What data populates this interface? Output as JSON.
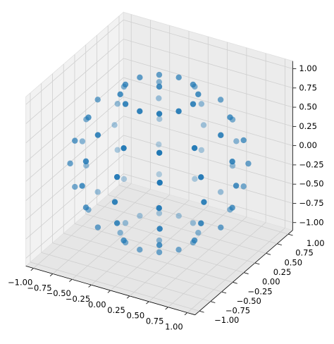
{
  "chart_data": {
    "type": "scatter3d",
    "color": "#1f77b4",
    "x": [
      0.44,
      0.38,
      0.22,
      0,
      -0.22,
      -0.38,
      -0.44,
      -0.38,
      -0.22,
      0,
      0.22,
      0.38,
      0.8,
      0.69,
      0.4,
      0,
      -0.4,
      -0.69,
      -0.8,
      -0.69,
      -0.4,
      0,
      0.4,
      0.69,
      0.95,
      0.82,
      0.48,
      0,
      -0.48,
      -0.82,
      -0.95,
      -0.82,
      -0.48,
      0,
      0.48,
      0.82,
      1,
      0.87,
      0.5,
      0,
      -0.5,
      -0.87,
      -1,
      -0.87,
      -0.5,
      0,
      0.5,
      0.87,
      0.95,
      0.82,
      0.48,
      0,
      -0.48,
      -0.82,
      -0.95,
      -0.82,
      -0.48,
      0,
      0.48,
      0.82,
      0.8,
      0.69,
      0.4,
      0,
      -0.4,
      -0.69,
      -0.8,
      -0.69,
      -0.4,
      0,
      0.4,
      0.69,
      0.44,
      0.38,
      0.22,
      0,
      -0.22,
      -0.38,
      -0.44,
      -0.38,
      -0.22,
      0,
      0.22,
      0.38,
      0,
      0
    ],
    "y": [
      0,
      0.22,
      0.38,
      0.44,
      0.38,
      0.22,
      0,
      -0.22,
      -0.38,
      -0.44,
      -0.38,
      -0.22,
      0,
      0.4,
      0.69,
      0.8,
      0.69,
      0.4,
      0,
      -0.4,
      -0.69,
      -0.8,
      -0.69,
      -0.4,
      0,
      0.48,
      0.82,
      0.95,
      0.82,
      0.48,
      0,
      -0.48,
      -0.82,
      -0.95,
      -0.82,
      -0.48,
      0,
      0.5,
      0.87,
      1,
      0.87,
      0.5,
      0,
      -0.5,
      -0.87,
      -1,
      -0.87,
      -0.5,
      0,
      0.48,
      0.82,
      0.95,
      0.82,
      0.48,
      0,
      -0.48,
      -0.82,
      -0.95,
      -0.82,
      -0.48,
      0,
      0.4,
      0.69,
      0.8,
      0.69,
      0.4,
      0,
      -0.4,
      -0.69,
      -0.8,
      -0.69,
      -0.4,
      0,
      0.22,
      0.38,
      0.44,
      0.38,
      0.22,
      0,
      -0.22,
      -0.38,
      -0.44,
      -0.38,
      -0.22,
      0,
      0
    ],
    "z": [
      -0.9,
      -0.9,
      -0.9,
      -0.9,
      -0.9,
      -0.9,
      -0.9,
      -0.9,
      -0.9,
      -0.9,
      -0.9,
      -0.9,
      -0.6,
      -0.6,
      -0.6,
      -0.6,
      -0.6,
      -0.6,
      -0.6,
      -0.6,
      -0.6,
      -0.6,
      -0.6,
      -0.6,
      -0.3,
      -0.3,
      -0.3,
      -0.3,
      -0.3,
      -0.3,
      -0.3,
      -0.3,
      -0.3,
      -0.3,
      -0.3,
      -0.3,
      0,
      0,
      0,
      0,
      0,
      0,
      0,
      0,
      0,
      0,
      0,
      0,
      0.3,
      0.3,
      0.3,
      0.3,
      0.3,
      0.3,
      0.3,
      0.3,
      0.3,
      0.3,
      0.3,
      0.3,
      0.6,
      0.6,
      0.6,
      0.6,
      0.6,
      0.6,
      0.6,
      0.6,
      0.6,
      0.6,
      0.6,
      0.6,
      0.9,
      0.9,
      0.9,
      0.9,
      0.9,
      0.9,
      0.9,
      0.9,
      0.9,
      0.9,
      0.9,
      0.9,
      1,
      -1
    ],
    "xlim": [
      -1.1,
      1.1
    ],
    "ylim": [
      -1.1,
      1.1
    ],
    "zlim": [
      -1.1,
      1.1
    ],
    "xticks": [
      {
        "value": -1,
        "label": "−1.00"
      },
      {
        "value": -0.75,
        "label": "−0.75"
      },
      {
        "value": -0.5,
        "label": "−0.50"
      },
      {
        "value": -0.25,
        "label": "−0.25"
      },
      {
        "value": 0,
        "label": "0.00"
      },
      {
        "value": 0.25,
        "label": "0.25"
      },
      {
        "value": 0.5,
        "label": "0.50"
      },
      {
        "value": 0.75,
        "label": "0.75"
      },
      {
        "value": 1,
        "label": "1.00"
      }
    ],
    "yticks": [
      {
        "value": -1,
        "label": "−1.00"
      },
      {
        "value": -0.75,
        "label": "−0.75"
      },
      {
        "value": -0.5,
        "label": "−0.50"
      },
      {
        "value": -0.25,
        "label": "−0.25"
      },
      {
        "value": 0,
        "label": "0.00"
      },
      {
        "value": 0.25,
        "label": "0.25"
      },
      {
        "value": 0.5,
        "label": "0.50"
      },
      {
        "value": 0.75,
        "label": "0.75"
      },
      {
        "value": 1,
        "label": "1.00"
      }
    ],
    "zticks": [
      {
        "value": -1,
        "label": "−1.00"
      },
      {
        "value": -0.75,
        "label": "−0.75"
      },
      {
        "value": -0.5,
        "label": "−0.50"
      },
      {
        "value": -0.25,
        "label": "−0.25"
      },
      {
        "value": 0,
        "label": "0.00"
      },
      {
        "value": 0.25,
        "label": "0.25"
      },
      {
        "value": 0.5,
        "label": "0.50"
      },
      {
        "value": 0.75,
        "label": "0.75"
      },
      {
        "value": 1,
        "label": "1.00"
      }
    ],
    "grid": true
  }
}
